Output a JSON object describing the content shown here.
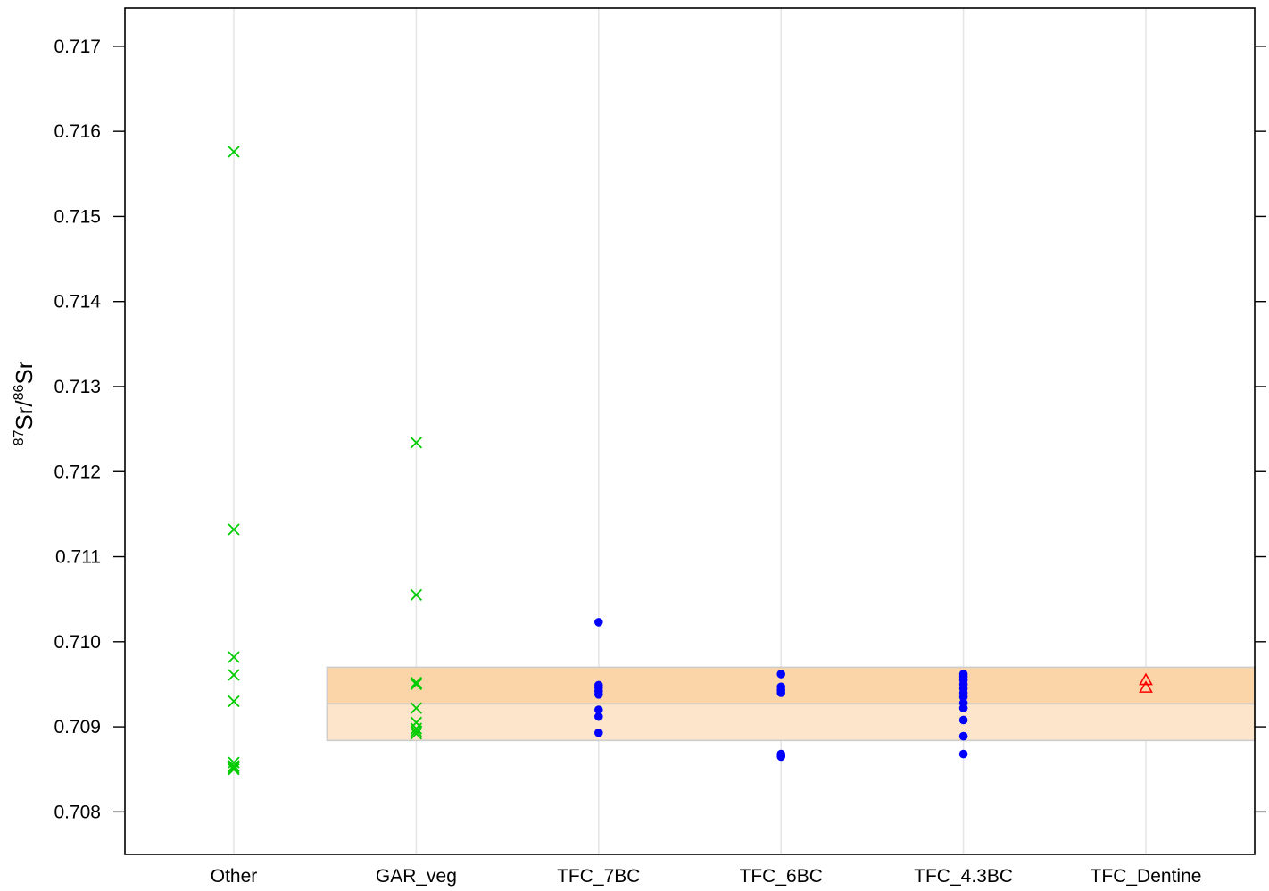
{
  "chart_data": {
    "type": "scatter",
    "title": "",
    "xlabel": "",
    "ylabel": {
      "sup1": "87",
      "base1": "Sr/",
      "sup2": "86",
      "base2": "Sr"
    },
    "categories": [
      "Other",
      "GAR_veg",
      "TFC_7BC",
      "TFC_6BC",
      "TFC_4.3BC",
      "TFC_Dentine"
    ],
    "yticks": [
      "0.708",
      "0.709",
      "0.710",
      "0.711",
      "0.712",
      "0.713",
      "0.714",
      "0.715",
      "0.716",
      "0.717"
    ],
    "ylim": [
      0.7075,
      0.71745
    ],
    "grid": "vertical",
    "bands": [
      {
        "ymin": 0.70927,
        "ymax": 0.7097,
        "x_from_category": "GAR_veg",
        "color": "#fbd5a8"
      },
      {
        "ymin": 0.70884,
        "ymax": 0.70927,
        "x_from_category": "GAR_veg",
        "color": "#fce5cb"
      }
    ],
    "series": [
      {
        "marker": "x",
        "color": "#00cc00",
        "points": [
          {
            "category": "Other",
            "y": 0.71576
          },
          {
            "category": "Other",
            "y": 0.71132
          },
          {
            "category": "Other",
            "y": 0.70982
          },
          {
            "category": "Other",
            "y": 0.70961
          },
          {
            "category": "Other",
            "y": 0.7093
          },
          {
            "category": "Other",
            "y": 0.70858
          },
          {
            "category": "Other",
            "y": 0.70854
          },
          {
            "category": "Other",
            "y": 0.70852
          },
          {
            "category": "Other",
            "y": 0.7085
          },
          {
            "category": "GAR_veg",
            "y": 0.71234
          },
          {
            "category": "GAR_veg",
            "y": 0.71055
          },
          {
            "category": "GAR_veg",
            "y": 0.70952
          },
          {
            "category": "GAR_veg",
            "y": 0.70951
          },
          {
            "category": "GAR_veg",
            "y": 0.7095
          },
          {
            "category": "GAR_veg",
            "y": 0.70922
          },
          {
            "category": "GAR_veg",
            "y": 0.70905
          },
          {
            "category": "GAR_veg",
            "y": 0.70898
          },
          {
            "category": "GAR_veg",
            "y": 0.70895
          },
          {
            "category": "GAR_veg",
            "y": 0.70892
          }
        ]
      },
      {
        "marker": "dot",
        "color": "#0000ff",
        "points": [
          {
            "category": "TFC_7BC",
            "y": 0.71023
          },
          {
            "category": "TFC_7BC",
            "y": 0.70949
          },
          {
            "category": "TFC_7BC",
            "y": 0.70946
          },
          {
            "category": "TFC_7BC",
            "y": 0.70942
          },
          {
            "category": "TFC_7BC",
            "y": 0.70938
          },
          {
            "category": "TFC_7BC",
            "y": 0.7092
          },
          {
            "category": "TFC_7BC",
            "y": 0.70912
          },
          {
            "category": "TFC_7BC",
            "y": 0.70893
          },
          {
            "category": "TFC_6BC",
            "y": 0.70962
          },
          {
            "category": "TFC_6BC",
            "y": 0.70947
          },
          {
            "category": "TFC_6BC",
            "y": 0.70943
          },
          {
            "category": "TFC_6BC",
            "y": 0.7094
          },
          {
            "category": "TFC_6BC",
            "y": 0.70868
          },
          {
            "category": "TFC_6BC",
            "y": 0.70866
          },
          {
            "category": "TFC_6BC",
            "y": 0.70865
          },
          {
            "category": "TFC_4.3BC",
            "y": 0.70962
          },
          {
            "category": "TFC_4.3BC",
            "y": 0.70959
          },
          {
            "category": "TFC_4.3BC",
            "y": 0.70955
          },
          {
            "category": "TFC_4.3BC",
            "y": 0.7095
          },
          {
            "category": "TFC_4.3BC",
            "y": 0.70945
          },
          {
            "category": "TFC_4.3BC",
            "y": 0.7094
          },
          {
            "category": "TFC_4.3BC",
            "y": 0.70935
          },
          {
            "category": "TFC_4.3BC",
            "y": 0.70928
          },
          {
            "category": "TFC_4.3BC",
            "y": 0.70922
          },
          {
            "category": "TFC_4.3BC",
            "y": 0.70908
          },
          {
            "category": "TFC_4.3BC",
            "y": 0.70889
          },
          {
            "category": "TFC_4.3BC",
            "y": 0.70868
          }
        ]
      },
      {
        "marker": "triangle",
        "color": "#ff0000",
        "points": [
          {
            "category": "TFC_Dentine",
            "y": 0.70955
          },
          {
            "category": "TFC_Dentine",
            "y": 0.70946
          }
        ]
      }
    ]
  }
}
